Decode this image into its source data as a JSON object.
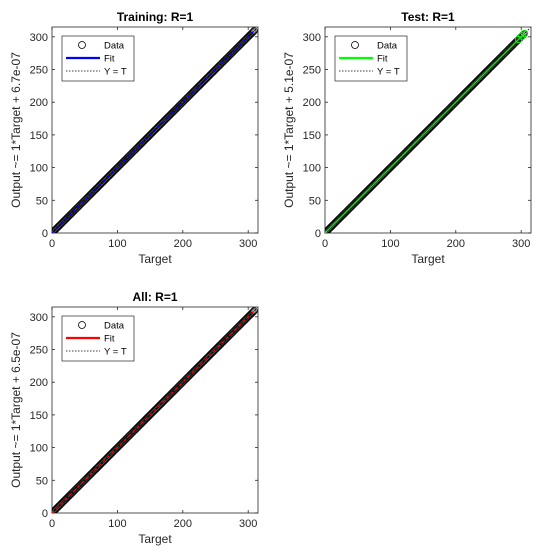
{
  "chart_data": [
    {
      "type": "scatter",
      "title": "Training: R=1",
      "xlabel": "Target",
      "ylabel": "Output ~= 1*Target + 6.7e-07",
      "xlim": [
        0,
        315
      ],
      "ylim": [
        0,
        315
      ],
      "xticks": [
        0,
        100,
        200,
        300
      ],
      "yticks": [
        0,
        50,
        100,
        150,
        200,
        250,
        300
      ],
      "fit": {
        "slope": 1,
        "intercept": 6.7e-07,
        "color": "#0000ff"
      },
      "data_marker_color": "#000000",
      "data_range": [
        0,
        310
      ],
      "legend": {
        "position": "top-left",
        "entries": [
          "Data",
          "Fit",
          "Y = T"
        ]
      }
    },
    {
      "type": "scatter",
      "title": "Test: R=1",
      "xlabel": "Target",
      "ylabel": "Output ~= 1*Target + 5.1e-07",
      "xlim": [
        0,
        315
      ],
      "ylim": [
        0,
        315
      ],
      "xticks": [
        0,
        100,
        200,
        300
      ],
      "yticks": [
        0,
        50,
        100,
        150,
        200,
        250,
        300
      ],
      "fit": {
        "slope": 1,
        "intercept": 5.1e-07,
        "color": "#00ff00"
      },
      "data_marker_color": "#000000",
      "data_range": [
        0,
        305
      ],
      "legend": {
        "position": "top-left",
        "entries": [
          "Data",
          "Fit",
          "Y = T"
        ]
      }
    },
    {
      "type": "scatter",
      "title": "All: R=1",
      "xlabel": "Target",
      "ylabel": "Output ~= 1*Target + 6.5e-07",
      "xlim": [
        0,
        315
      ],
      "ylim": [
        0,
        315
      ],
      "xticks": [
        0,
        100,
        200,
        300
      ],
      "yticks": [
        0,
        50,
        100,
        150,
        200,
        250,
        300
      ],
      "fit": {
        "slope": 1,
        "intercept": 6.5e-07,
        "color": "#ff0000"
      },
      "data_marker_color": "#000000",
      "data_range": [
        0,
        310
      ],
      "legend": {
        "position": "top-left",
        "entries": [
          "Data",
          "Fit",
          "Y = T"
        ]
      }
    }
  ]
}
